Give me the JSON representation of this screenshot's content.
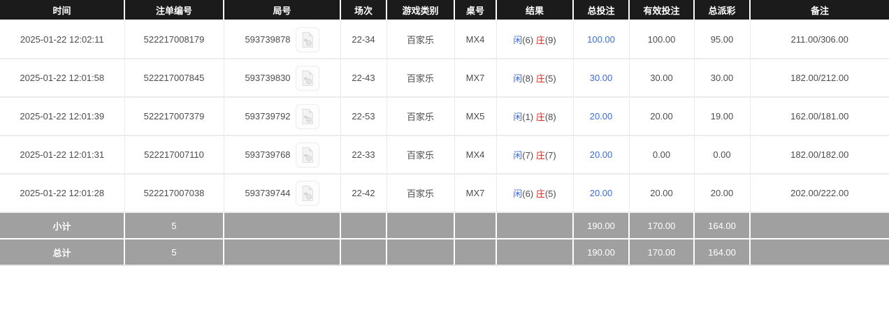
{
  "table": {
    "columns": [
      "时间",
      "注单编号",
      "局号",
      "场次",
      "游戏类别",
      "桌号",
      "结果",
      "总投注",
      "有效投注",
      "总派彩",
      "备注"
    ],
    "rows": [
      {
        "time": "2025-01-22 12:02:11",
        "bet_id": "522217008179",
        "round_id": "593739878",
        "session": "22-34",
        "game": "百家乐",
        "table_no": "MX4",
        "result": {
          "p_label": "闲",
          "p_score": "(6)",
          "b_label": "庄",
          "b_score": "(9)"
        },
        "total_bet": "100.00",
        "valid_bet": "100.00",
        "payout": "95.00",
        "remark": "211.00/306.00"
      },
      {
        "time": "2025-01-22 12:01:58",
        "bet_id": "522217007845",
        "round_id": "593739830",
        "session": "22-43",
        "game": "百家乐",
        "table_no": "MX7",
        "result": {
          "p_label": "闲",
          "p_score": "(8)",
          "b_label": "庄",
          "b_score": "(5)"
        },
        "total_bet": "30.00",
        "valid_bet": "30.00",
        "payout": "30.00",
        "remark": "182.00/212.00"
      },
      {
        "time": "2025-01-22 12:01:39",
        "bet_id": "522217007379",
        "round_id": "593739792",
        "session": "22-53",
        "game": "百家乐",
        "table_no": "MX5",
        "result": {
          "p_label": "闲",
          "p_score": "(1)",
          "b_label": "庄",
          "b_score": "(8)"
        },
        "total_bet": "20.00",
        "valid_bet": "20.00",
        "payout": "19.00",
        "remark": "162.00/181.00"
      },
      {
        "time": "2025-01-22 12:01:31",
        "bet_id": "522217007110",
        "round_id": "593739768",
        "session": "22-33",
        "game": "百家乐",
        "table_no": "MX4",
        "result": {
          "p_label": "闲",
          "p_score": "(7)",
          "b_label": "庄",
          "b_score": "(7)"
        },
        "total_bet": "20.00",
        "valid_bet": "0.00",
        "payout": "0.00",
        "remark": "182.00/182.00"
      },
      {
        "time": "2025-01-22 12:01:28",
        "bet_id": "522217007038",
        "round_id": "593739744",
        "session": "22-42",
        "game": "百家乐",
        "table_no": "MX7",
        "result": {
          "p_label": "闲",
          "p_score": "(6)",
          "b_label": "庄",
          "b_score": "(5)"
        },
        "total_bet": "20.00",
        "valid_bet": "20.00",
        "payout": "20.00",
        "remark": "202.00/222.00"
      }
    ],
    "summary": [
      {
        "label": "小计",
        "count": "5",
        "total_bet": "190.00",
        "valid_bet": "170.00",
        "payout": "164.00"
      },
      {
        "label": "总计",
        "count": "5",
        "total_bet": "190.00",
        "valid_bet": "170.00",
        "payout": "164.00"
      }
    ],
    "icons": {
      "round_video": "video-file-icon"
    },
    "colors": {
      "header_bg": "#1b1b1b",
      "summary_bg": "#a0a0a0",
      "player_blue": "#3a6bd8",
      "banker_red": "#d0342c",
      "amount_link_blue": "#3a6bd8"
    }
  }
}
